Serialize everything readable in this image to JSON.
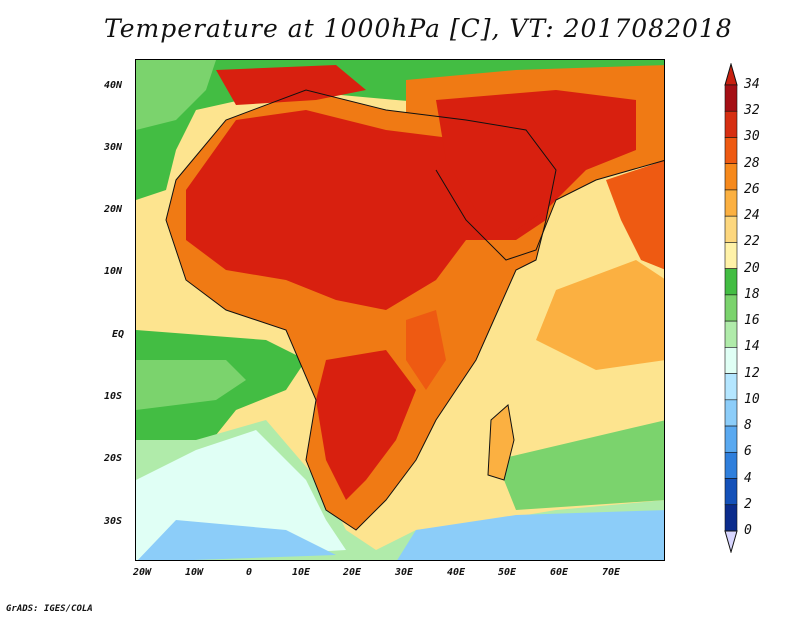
{
  "title": "Temperature at 1000hPa [C], VT: 2017082018",
  "footer": "GrADS: IGES/COLA",
  "lat_labels": [
    "40N",
    "30N",
    "20N",
    "10N",
    "EQ",
    "10S",
    "20S",
    "30S"
  ],
  "lon_labels": [
    "20W",
    "10W",
    "0",
    "10E",
    "20E",
    "30E",
    "40E",
    "50E",
    "60E",
    "70E"
  ],
  "colorbar": {
    "levels": [
      "34",
      "32",
      "30",
      "28",
      "26",
      "24",
      "22",
      "20",
      "18",
      "16",
      "14",
      "12",
      "10",
      "8",
      "6",
      "4",
      "2",
      "0"
    ],
    "colors": [
      "#a50f15",
      "#d62f12",
      "#ee5a12",
      "#f6891c",
      "#fbb041",
      "#fdd77e",
      "#fff2a8",
      "#43bd43",
      "#7bd36d",
      "#b0ebaa",
      "#e0fff5",
      "#b4e6ff",
      "#8ccdf9",
      "#5aa9f0",
      "#2f7fdc",
      "#1451b9",
      "#0b2c8c",
      "#06145e"
    ],
    "over_color": "#c8200f",
    "under_color": "#d8d6ff"
  },
  "map_extent": {
    "lon_min": -22,
    "lon_max": 80,
    "lat_min": -37,
    "lat_max": 45
  },
  "colors": {
    "ocean_cool": "#4fbf4f",
    "ocean_warm": "#fde48f",
    "land_hot": "#d8200f",
    "land_warm": "#f07a14",
    "cold_south": "#a8dcff"
  }
}
